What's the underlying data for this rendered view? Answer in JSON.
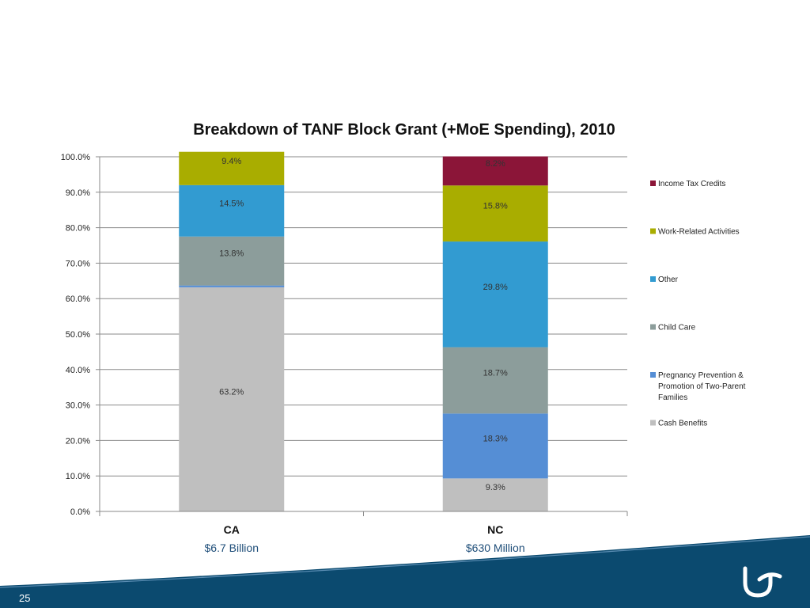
{
  "slide": {
    "page_number": "25",
    "logo_icon": "organization-logo-icon",
    "footer_color": "#0b4a6f"
  },
  "chart_data": {
    "type": "bar",
    "stacked": true,
    "title": "Breakdown of TANF Block Grant (+MoE Spending), 2010",
    "xlabel": "",
    "ylabel": "",
    "ylim": [
      0,
      100
    ],
    "yticks": [
      "0.0%",
      "10.0%",
      "20.0%",
      "30.0%",
      "40.0%",
      "50.0%",
      "60.0%",
      "70.0%",
      "80.0%",
      "90.0%",
      "100.0%"
    ],
    "grid": true,
    "legend_position": "right",
    "categories": [
      "CA",
      "NC"
    ],
    "category_subtitles": [
      "$6.7 Billion",
      "$630 Million"
    ],
    "series": [
      {
        "name": "Cash Benefits",
        "color": "#bfbfbf",
        "values": [
          63.2,
          9.3
        ],
        "labels": [
          "63.2%",
          "9.3%"
        ]
      },
      {
        "name": "Pregnancy Prevention & Promotion of Two-Parent Families",
        "legend_lines": [
          "Pregnancy Prevention &",
          "Promotion of Two-Parent",
          "Families"
        ],
        "color": "#558ed5",
        "values": [
          0.5,
          18.3
        ],
        "labels": [
          "",
          "18.3%"
        ]
      },
      {
        "name": "Child Care",
        "color": "#8c9d9b",
        "values": [
          13.8,
          18.7
        ],
        "labels": [
          "13.8%",
          "18.7%"
        ]
      },
      {
        "name": "Other",
        "color": "#329bd1",
        "values": [
          14.5,
          29.8
        ],
        "labels": [
          "14.5%",
          "29.8%"
        ]
      },
      {
        "name": "Work-Related Activities",
        "color": "#a9ad00",
        "values": [
          9.4,
          15.8
        ],
        "labels": [
          "9.4%",
          "15.8%"
        ]
      },
      {
        "name": "Income Tax Credits",
        "color": "#8b1538",
        "values": [
          0,
          8.2
        ],
        "labels": [
          "",
          "8.2%"
        ]
      }
    ]
  }
}
